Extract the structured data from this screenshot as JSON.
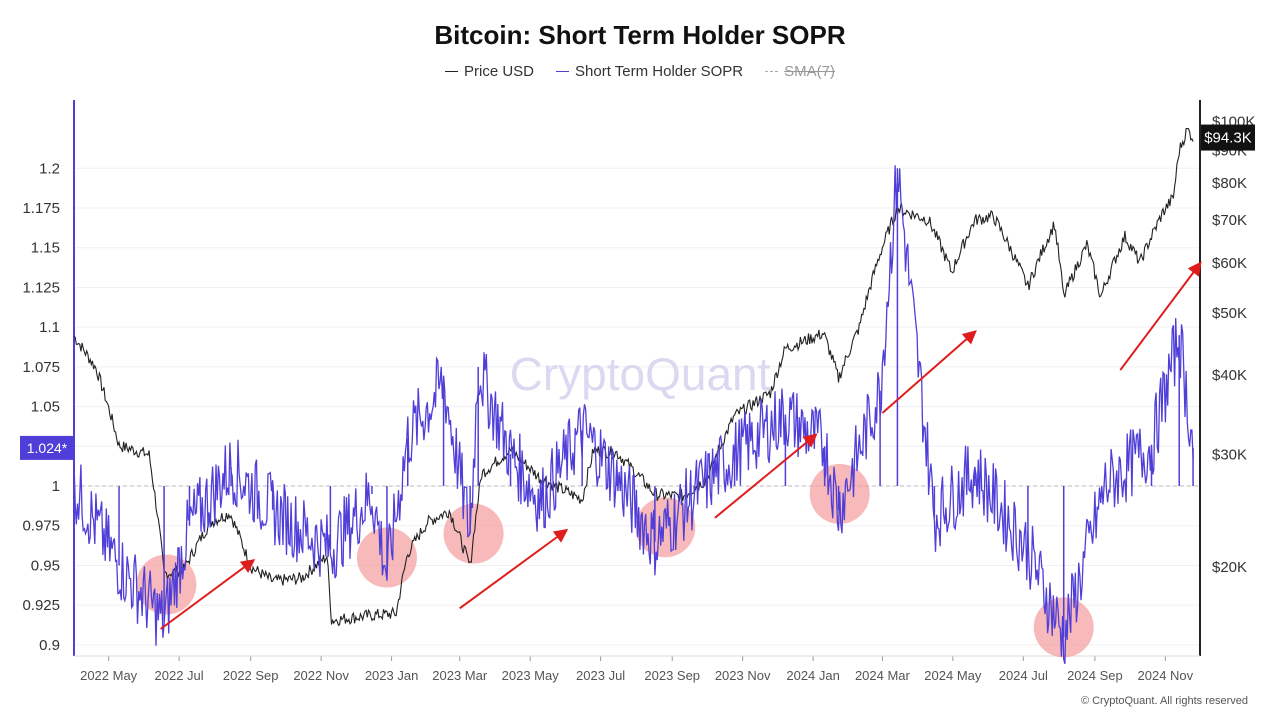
{
  "title": "Bitcoin: Short Term Holder SOPR",
  "legend": [
    {
      "label": "Price USD",
      "color": "#222222",
      "style": "solid",
      "enabled": true
    },
    {
      "label": "Short Term Holder SOPR",
      "color": "#4f3fd8",
      "style": "solid",
      "enabled": true
    },
    {
      "label": "SMA(7)",
      "color": "#aaaaaa",
      "style": "dashed",
      "enabled": false
    }
  ],
  "watermark": "CryptoQuant",
  "copyright": "© CryptoQuant. All rights reserved",
  "chart_data": {
    "type": "line",
    "title": "Bitcoin: Short Term Holder SOPR",
    "x_range": [
      "2022-04",
      "2024-12"
    ],
    "x_tick_labels": [
      "2022 May",
      "2022 Jul",
      "2022 Sep",
      "2022 Nov",
      "2023 Jan",
      "2023 Mar",
      "2023 May",
      "2023 Jul",
      "2023 Sep",
      "2023 Nov",
      "2024 Jan",
      "2024 Mar",
      "2024 May",
      "2024 Jul",
      "2024 Sep",
      "2024 Nov"
    ],
    "left_axis": {
      "label": "Short Term Holder SOPR",
      "ylim": [
        0.893,
        1.243
      ],
      "ticks": [
        0.9,
        0.925,
        0.95,
        0.975,
        1,
        1.025,
        1.05,
        1.075,
        1.1,
        1.125,
        1.15,
        1.175,
        1.2
      ],
      "tick_labels": [
        "0.9",
        "0.925",
        "0.95",
        "0.975",
        "1",
        "",
        "1.05",
        "1.075",
        "1.1",
        "1.125",
        "1.15",
        "1.175",
        "1.2"
      ]
    },
    "right_axis": {
      "label": "Price USD",
      "scale": "log",
      "ylim": [
        14500,
        108000
      ],
      "ticks": [
        20000,
        30000,
        40000,
        50000,
        60000,
        70000,
        80000,
        90000,
        100000
      ],
      "tick_labels": [
        "$20K",
        "$30K",
        "$40K",
        "$50K",
        "$60K",
        "$70K",
        "$80K",
        "$90K",
        "$100K"
      ]
    },
    "current_sopr_label": "1.024*",
    "current_price_label": "$94.3K",
    "baseline": 1.0,
    "series": [
      {
        "name": "Price USD",
        "axis": "right",
        "points": [
          [
            "2022-04-01",
            46000
          ],
          [
            "2022-04-20",
            41000
          ],
          [
            "2022-05-10",
            31000
          ],
          [
            "2022-06-05",
            30000
          ],
          [
            "2022-06-18",
            19500
          ],
          [
            "2022-07-05",
            19800
          ],
          [
            "2022-07-28",
            23500
          ],
          [
            "2022-08-14",
            24300
          ],
          [
            "2022-09-01",
            20000
          ],
          [
            "2022-09-20",
            19000
          ],
          [
            "2022-10-15",
            19200
          ],
          [
            "2022-11-06",
            20800
          ],
          [
            "2022-11-10",
            16500
          ],
          [
            "2022-12-15",
            16800
          ],
          [
            "2023-01-05",
            16900
          ],
          [
            "2023-01-15",
            21000
          ],
          [
            "2023-02-01",
            23500
          ],
          [
            "2023-02-20",
            24500
          ],
          [
            "2023-03-10",
            20000
          ],
          [
            "2023-03-20",
            28000
          ],
          [
            "2023-04-14",
            30500
          ],
          [
            "2023-05-10",
            27500
          ],
          [
            "2023-06-15",
            25500
          ],
          [
            "2023-06-25",
            30500
          ],
          [
            "2023-07-15",
            30200
          ],
          [
            "2023-08-17",
            26000
          ],
          [
            "2023-09-10",
            25800
          ],
          [
            "2023-10-01",
            27500
          ],
          [
            "2023-10-25",
            34500
          ],
          [
            "2023-11-25",
            37500
          ],
          [
            "2023-12-08",
            44000
          ],
          [
            "2024-01-10",
            46500
          ],
          [
            "2024-01-23",
            39500
          ],
          [
            "2024-02-10",
            47500
          ],
          [
            "2024-02-28",
            62000
          ],
          [
            "2024-03-14",
            73000
          ],
          [
            "2024-04-10",
            70000
          ],
          [
            "2024-04-30",
            58000
          ],
          [
            "2024-05-20",
            70000
          ],
          [
            "2024-06-05",
            71000
          ],
          [
            "2024-07-05",
            55000
          ],
          [
            "2024-07-28",
            69000
          ],
          [
            "2024-08-05",
            53000
          ],
          [
            "2024-08-25",
            64000
          ],
          [
            "2024-09-06",
            53000
          ],
          [
            "2024-09-27",
            66000
          ],
          [
            "2024-10-10",
            60000
          ],
          [
            "2024-10-30",
            72000
          ],
          [
            "2024-11-08",
            76000
          ],
          [
            "2024-11-13",
            90000
          ],
          [
            "2024-11-20",
            97000
          ],
          [
            "2024-11-25",
            94300
          ]
        ]
      },
      {
        "name": "Short Term Holder SOPR",
        "axis": "left",
        "points": [
          [
            "2022-04-01",
            1.0
          ],
          [
            "2022-05-10",
            0.95
          ],
          [
            "2022-06-18",
            0.915
          ],
          [
            "2022-07-10",
            0.975
          ],
          [
            "2022-08-15",
            1.012
          ],
          [
            "2022-09-20",
            0.985
          ],
          [
            "2022-11-09",
            0.96
          ],
          [
            "2022-12-15",
            0.995
          ],
          [
            "2022-12-28",
            0.945
          ],
          [
            "2023-01-15",
            1.03
          ],
          [
            "2023-02-15",
            1.065
          ],
          [
            "2023-03-10",
            0.97
          ],
          [
            "2023-03-17",
            1.075
          ],
          [
            "2023-04-14",
            1.02
          ],
          [
            "2023-05-10",
            0.99
          ],
          [
            "2023-06-15",
            1.035
          ],
          [
            "2023-07-15",
            1.005
          ],
          [
            "2023-08-17",
            0.965
          ],
          [
            "2023-09-20",
            0.995
          ],
          [
            "2023-10-25",
            1.02
          ],
          [
            "2023-12-08",
            1.045
          ],
          [
            "2024-01-11",
            1.025
          ],
          [
            "2024-01-23",
            0.985
          ],
          [
            "2024-02-28",
            1.06
          ],
          [
            "2024-03-14",
            1.2
          ],
          [
            "2024-04-15",
            0.98
          ],
          [
            "2024-05-20",
            1.01
          ],
          [
            "2024-07-05",
            0.96
          ],
          [
            "2024-08-05",
            0.905
          ],
          [
            "2024-09-10",
            1.0
          ],
          [
            "2024-10-20",
            1.025
          ],
          [
            "2024-11-13",
            1.095
          ],
          [
            "2024-11-25",
            1.024
          ]
        ]
      }
    ],
    "annotations": {
      "capitulation_circles": [
        {
          "date": "2022-06-20",
          "sopr": 0.938
        },
        {
          "date": "2022-12-28",
          "sopr": 0.955
        },
        {
          "date": "2023-03-13",
          "sopr": 0.97
        },
        {
          "date": "2023-08-26",
          "sopr": 0.974
        },
        {
          "date": "2024-01-24",
          "sopr": 0.995
        },
        {
          "date": "2024-08-05",
          "sopr": 0.911
        }
      ],
      "uptrend_arrows": [
        {
          "from": [
            "2022-06-15",
            0.91
          ],
          "to": [
            "2022-09-03",
            0.953
          ]
        },
        {
          "from": [
            "2023-03-01",
            0.923
          ],
          "to": [
            "2023-06-01",
            0.972
          ]
        },
        {
          "from": [
            "2023-10-08",
            0.98
          ],
          "to": [
            "2024-01-03",
            1.032
          ]
        },
        {
          "from": [
            "2024-03-01",
            1.046
          ],
          "to": [
            "2024-05-20",
            1.097
          ]
        },
        {
          "from": [
            "2024-09-23",
            1.073
          ],
          "to": [
            "2024-12-01",
            1.14
          ]
        }
      ]
    }
  }
}
